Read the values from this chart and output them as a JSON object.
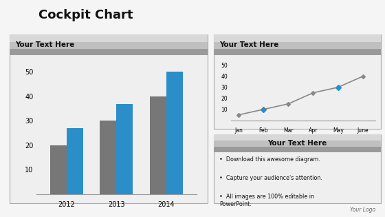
{
  "title": "Cockpit Chart",
  "title_fontsize": 13,
  "background_color": "#f5f5f5",
  "left_panel_title": "Your Text Here",
  "bar_years": [
    "2012",
    "2013",
    "2014"
  ],
  "bar_gray": [
    20,
    30,
    40
  ],
  "bar_blue": [
    27,
    37,
    50
  ],
  "bar_gray_color": "#777777",
  "bar_blue_color": "#2b8ec8",
  "bar_ylim": [
    0,
    55
  ],
  "bar_yticks": [
    0,
    10,
    20,
    30,
    40,
    50
  ],
  "right_top_title": "Your Text Here",
  "line_x_labels": [
    "Jan",
    "Feb",
    "Mar",
    "Apr",
    "May",
    "June"
  ],
  "line_y": [
    5,
    10,
    15,
    25,
    30,
    40
  ],
  "line_color": "#888888",
  "line_blue_color": "#2b8ec8",
  "line_blue_indices": [
    1,
    4
  ],
  "line_ylim": [
    0,
    55
  ],
  "line_yticks": [
    0,
    10,
    20,
    30,
    40,
    50
  ],
  "right_bottom_title": "Your Text Here",
  "bullet_points": [
    "Download this awesome diagram.",
    "Capture your audience's attention.",
    "All images are 100% editable in\nPowerPoint."
  ],
  "footer_text": "Your Logo"
}
